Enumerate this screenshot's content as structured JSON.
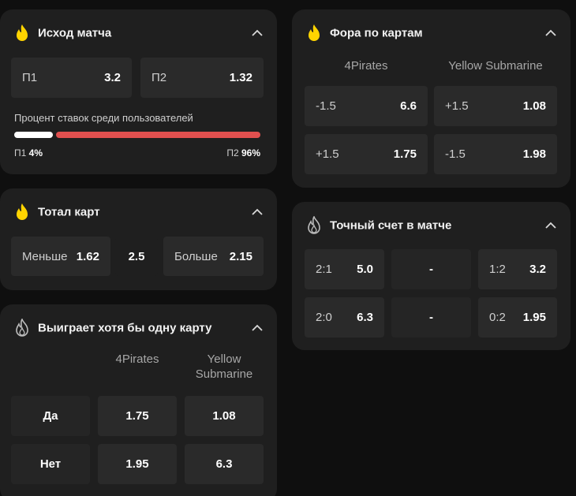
{
  "colors": {
    "background": "#0f0f0f",
    "card": "#1f1f1f",
    "cell": "#2a2a2a",
    "flame": "#ffd400",
    "p1_bar": "#ffffff",
    "p2_bar": "#e0504f"
  },
  "outcome": {
    "title": "Исход матча",
    "p1_label": "П1",
    "p1_odd": "3.2",
    "p2_label": "П2",
    "p2_odd": "1.32",
    "percent_title": "Процент ставок среди пользователей",
    "p1_pct_label": "П1",
    "p1_pct": "4%",
    "p2_pct_label": "П2",
    "p2_pct": "96%",
    "p1_share": 0.04
  },
  "total": {
    "title": "Тотал карт",
    "under_label": "Меньше",
    "under_odd": "1.62",
    "line": "2.5",
    "over_label": "Больше",
    "over_odd": "2.15"
  },
  "win_one": {
    "title": "Выиграет хотя бы одну карту",
    "team1": "4Pirates",
    "team2": "Yellow Submarine",
    "rows": [
      {
        "label": "Да",
        "t1": "1.75",
        "t2": "1.08"
      },
      {
        "label": "Нет",
        "t1": "1.95",
        "t2": "6.3"
      }
    ]
  },
  "handicap": {
    "title": "Фора по картам",
    "team1": "4Pirates",
    "team2": "Yellow Submarine",
    "rows": [
      {
        "l1": "-1.5",
        "o1": "6.6",
        "l2": "+1.5",
        "o2": "1.08"
      },
      {
        "l1": "+1.5",
        "o1": "1.75",
        "l2": "-1.5",
        "o2": "1.98"
      }
    ]
  },
  "exact": {
    "title": "Точный счет в матче",
    "rows": [
      {
        "s1": "2:1",
        "o1": "5.0",
        "mid": "-",
        "s2": "1:2",
        "o2": "3.2"
      },
      {
        "s1": "2:0",
        "o1": "6.3",
        "mid": "-",
        "s2": "0:2",
        "o2": "1.95"
      }
    ]
  },
  "icons": {
    "active_market": "flame-filled-icon",
    "inactive_market": "flame-outline-icon",
    "collapse": "chevron-up-icon"
  }
}
